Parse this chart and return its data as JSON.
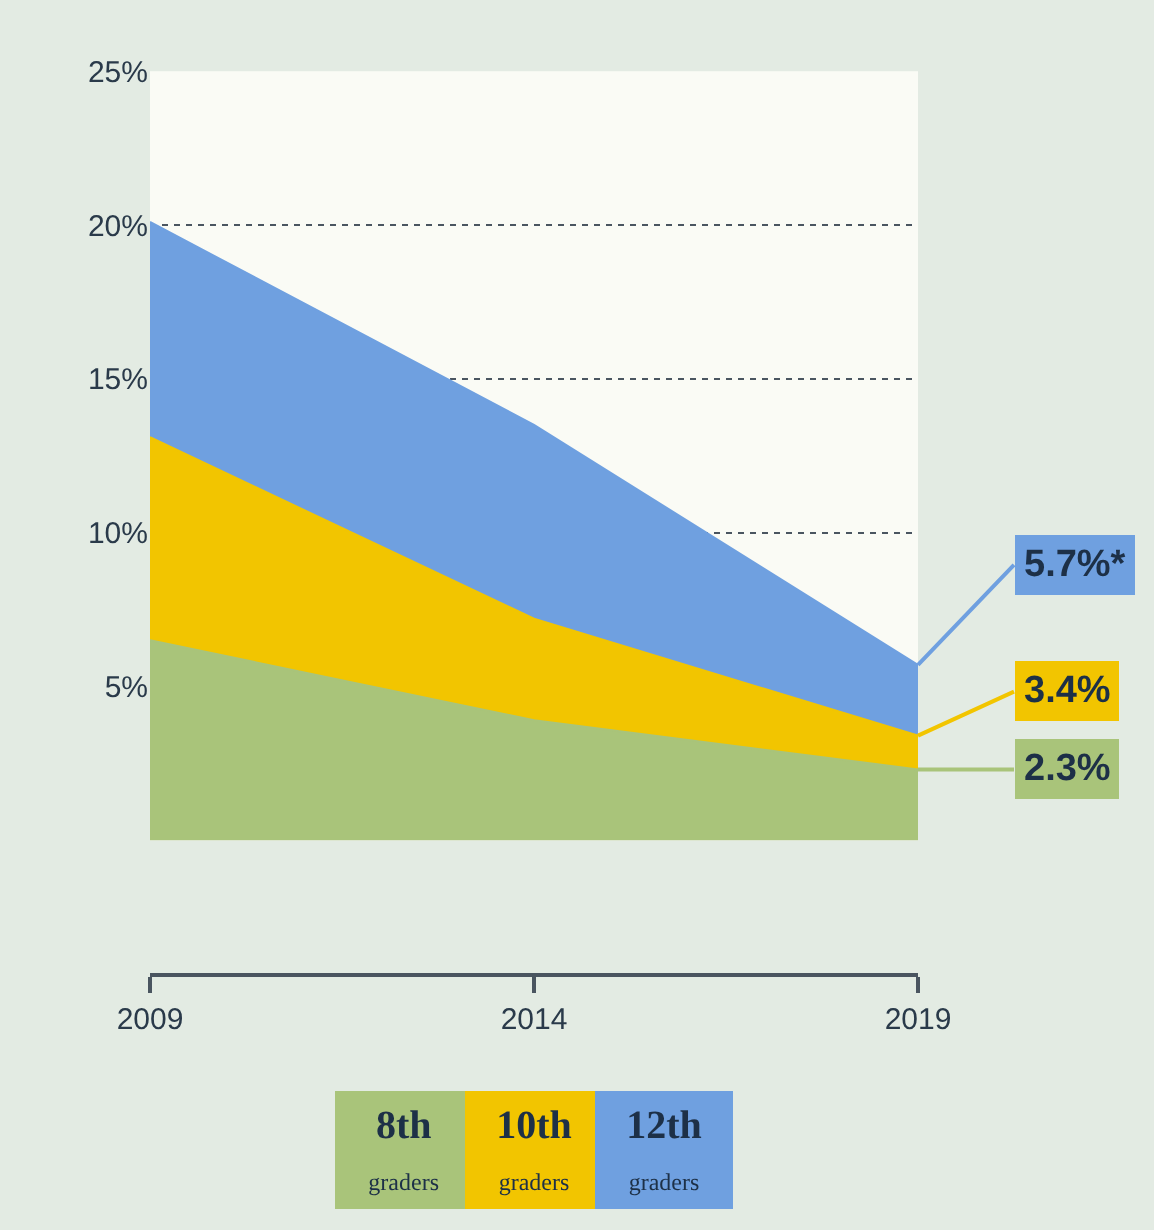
{
  "chart_data": {
    "type": "area",
    "x": [
      2009,
      2014,
      2019
    ],
    "series": [
      {
        "name": "8th graders",
        "color": "#a9c47a",
        "values": [
          6.5,
          3.9,
          2.3
        ],
        "value_labels": [
          null,
          null,
          "2.3%"
        ]
      },
      {
        "name": "10th graders",
        "color": "#f2c500",
        "values": [
          13.1,
          7.2,
          3.4
        ],
        "value_labels": [
          null,
          null,
          "3.4%"
        ]
      },
      {
        "name": "12th graders",
        "color": "#6fa0e0",
        "values": [
          20.1,
          13.5,
          5.7
        ],
        "value_labels": [
          null,
          null,
          "5.7%*"
        ]
      }
    ],
    "xlim": [
      2009,
      2019
    ],
    "xticks": [
      2009,
      2014,
      2019
    ],
    "ylim": [
      0,
      25
    ],
    "yticks": [
      {
        "value": 5,
        "label": "5%"
      },
      {
        "value": 10,
        "label": "10%"
      },
      {
        "value": 15,
        "label": "15%"
      },
      {
        "value": 20,
        "label": "20%"
      },
      {
        "value": 25,
        "label": "25%"
      }
    ],
    "grid": "y",
    "legend": "bottom",
    "marker": "none",
    "line_style": "solid"
  }
}
